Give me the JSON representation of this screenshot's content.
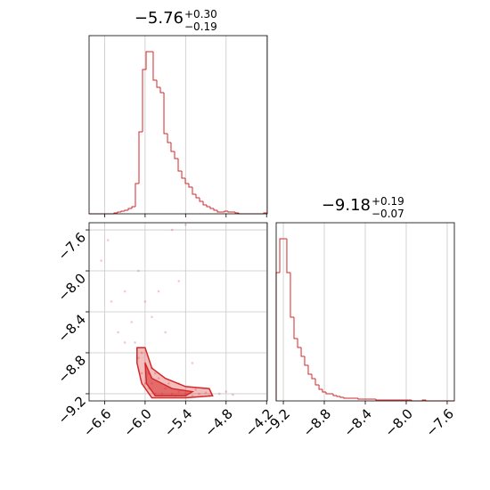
{
  "chart_data": [
    {
      "type": "histogram",
      "title": "−5.76",
      "title_sup": "+0.30",
      "title_sub": "−0.19",
      "color": "#d62728",
      "grid": true,
      "bins": [
        -6.83,
        -6.777,
        -6.724,
        -6.672,
        -6.619,
        -6.566,
        -6.513,
        -6.46,
        -6.408,
        -6.355,
        -6.302,
        -6.249,
        -6.196,
        -6.144,
        -6.091,
        -6.038,
        -5.985,
        -5.932,
        -5.88,
        -5.827,
        -5.774,
        -5.721,
        -5.668,
        -5.616,
        -5.563,
        -5.51,
        -5.457,
        -5.404,
        -5.352,
        -5.299,
        -5.246,
        -5.193,
        -5.14,
        -5.088,
        -5.035,
        -4.982,
        -4.929,
        -4.876,
        -4.824,
        -4.771,
        -4.718,
        -4.665,
        -4.612,
        -4.56,
        -4.507,
        -4.454,
        -4.401,
        -4.348,
        -4.296,
        -4.243,
        -4.19
      ],
      "values": [
        0,
        0,
        0,
        0,
        0,
        0,
        0,
        0.5,
        1,
        1.5,
        2,
        3,
        4,
        17,
        46,
        81,
        91,
        91,
        75,
        71,
        68,
        45,
        40,
        35,
        31,
        24,
        20,
        17,
        15,
        11,
        9,
        7,
        5,
        4,
        3,
        2,
        1,
        1,
        1.5,
        1,
        1,
        0.5,
        0,
        0,
        0,
        0,
        0,
        0,
        0,
        0.5
      ],
      "xlim": [
        -6.83,
        -4.19
      ],
      "ylim": [
        0,
        100
      ],
      "xticks": [
        -6.6,
        -6.0,
        -5.4,
        -4.8,
        -4.2
      ]
    },
    {
      "type": "scatter",
      "color": "#d62728",
      "grid": true,
      "x": [
        -6.55,
        -6.65,
        -6.5,
        -6.3,
        -6.2,
        -6.1,
        -6.0,
        -5.9,
        -5.6,
        -5.4,
        -5.5,
        -5.7,
        -5.3,
        -6.4,
        -6.3,
        -6.15,
        -5.8,
        -4.9,
        -4.8,
        -4.7,
        -6.05,
        -6.0,
        -5.95,
        -5.9,
        -5.85,
        -5.7,
        -5.6,
        -5.5,
        -5.4,
        -5.3,
        -5.2,
        -5.1,
        -5.05,
        -5.9,
        -5.8,
        -5.75,
        -6.05,
        -5.95,
        -5.65,
        -5.5,
        -6.0,
        -5.85,
        -6.1,
        -5.55,
        -5.25
      ],
      "y": [
        -7.7,
        -7.9,
        -8.3,
        -8.2,
        -8.5,
        -8.0,
        -8.3,
        -8.45,
        -7.6,
        -7.55,
        -8.1,
        -8.6,
        -8.9,
        -8.6,
        -8.7,
        -8.7,
        -8.2,
        -9.2,
        -9.18,
        -9.21,
        -8.8,
        -8.9,
        -9.0,
        -9.1,
        -9.2,
        -9.15,
        -9.2,
        -9.18,
        -9.2,
        -9.22,
        -9.2,
        -9.19,
        -9.22,
        -8.95,
        -9.05,
        -9.2,
        -9.0,
        -9.15,
        -9.1,
        -9.1,
        -9.1,
        -9.0,
        -8.85,
        -9.22,
        -9.16
      ],
      "contours": [
        {
          "x": [
            -6.12,
            -6.0,
            -5.9,
            -5.7,
            -5.4,
            -5.05,
            -5.0,
            -5.4,
            -5.9,
            -6.05,
            -6.12
          ],
          "y": [
            -8.75,
            -8.75,
            -8.95,
            -9.05,
            -9.13,
            -9.15,
            -9.22,
            -9.24,
            -9.24,
            -9.1,
            -8.9
          ]
        },
        {
          "x": [
            -6.0,
            -5.9,
            -5.6,
            -5.3,
            -5.4,
            -5.85,
            -5.98
          ],
          "y": [
            -8.9,
            -9.05,
            -9.15,
            -9.18,
            -9.22,
            -9.22,
            -9.1
          ]
        }
      ],
      "xlim": [
        -6.83,
        -4.19
      ],
      "ylim": [
        -9.27,
        -7.53
      ],
      "xticks": [
        {
          "value": -6.6,
          "label": "−6.6"
        },
        {
          "value": -6.0,
          "label": "−6.0"
        },
        {
          "value": -5.4,
          "label": "−5.4"
        },
        {
          "value": -4.8,
          "label": "−4.8"
        },
        {
          "value": -4.2,
          "label": "−4.2"
        }
      ],
      "yticks": [
        {
          "value": -7.6,
          "label": "−7.6"
        },
        {
          "value": -8.0,
          "label": "−8.0"
        },
        {
          "value": -8.4,
          "label": "−8.4"
        },
        {
          "value": -8.8,
          "label": "−8.8"
        },
        {
          "value": -9.2,
          "label": "−9.2"
        }
      ]
    },
    {
      "type": "histogram",
      "title": "−9.18",
      "title_sup": "+0.19",
      "title_sub": "−0.07",
      "color": "#d62728",
      "grid": true,
      "bins": [
        -9.27,
        -9.235,
        -9.2,
        -9.166,
        -9.131,
        -9.096,
        -9.061,
        -9.026,
        -8.992,
        -8.957,
        -8.922,
        -8.887,
        -8.852,
        -8.818,
        -8.783,
        -8.748,
        -8.713,
        -8.678,
        -8.644,
        -8.609,
        -8.574,
        -8.539,
        -8.504,
        -8.47,
        -8.435,
        -8.4,
        -8.365,
        -8.33,
        -8.296,
        -8.261,
        -8.226,
        -8.191,
        -8.156,
        -8.122,
        -8.087,
        -8.052,
        -8.017,
        -7.982,
        -7.948,
        -7.913,
        -7.878,
        -7.843,
        -7.808,
        -7.774,
        -7.739,
        -7.704,
        -7.669,
        -7.634,
        -7.6,
        -7.565,
        -7.53
      ],
      "values": [
        72,
        91,
        91,
        72,
        47,
        35,
        30,
        25,
        20,
        15,
        12.5,
        9,
        6.5,
        5,
        4,
        4,
        3,
        2.5,
        2,
        1.5,
        1.5,
        1.5,
        1.5,
        1,
        1,
        1,
        1,
        1,
        0.5,
        0.5,
        0.5,
        0.5,
        0.5,
        0.5,
        0.5,
        0.5,
        0.5,
        0.5,
        0,
        0,
        0,
        0.5,
        0,
        0,
        0,
        0,
        0,
        0,
        0,
        0
      ],
      "xlim": [
        -9.27,
        -7.53
      ],
      "ylim": [
        0,
        100
      ],
      "xticks": [
        {
          "value": -9.2,
          "label": "−9.2"
        },
        {
          "value": -8.8,
          "label": "−8.8"
        },
        {
          "value": -8.4,
          "label": "−8.4"
        },
        {
          "value": -8.0,
          "label": "−8.0"
        },
        {
          "value": -7.6,
          "label": "−7.6"
        }
      ]
    }
  ]
}
